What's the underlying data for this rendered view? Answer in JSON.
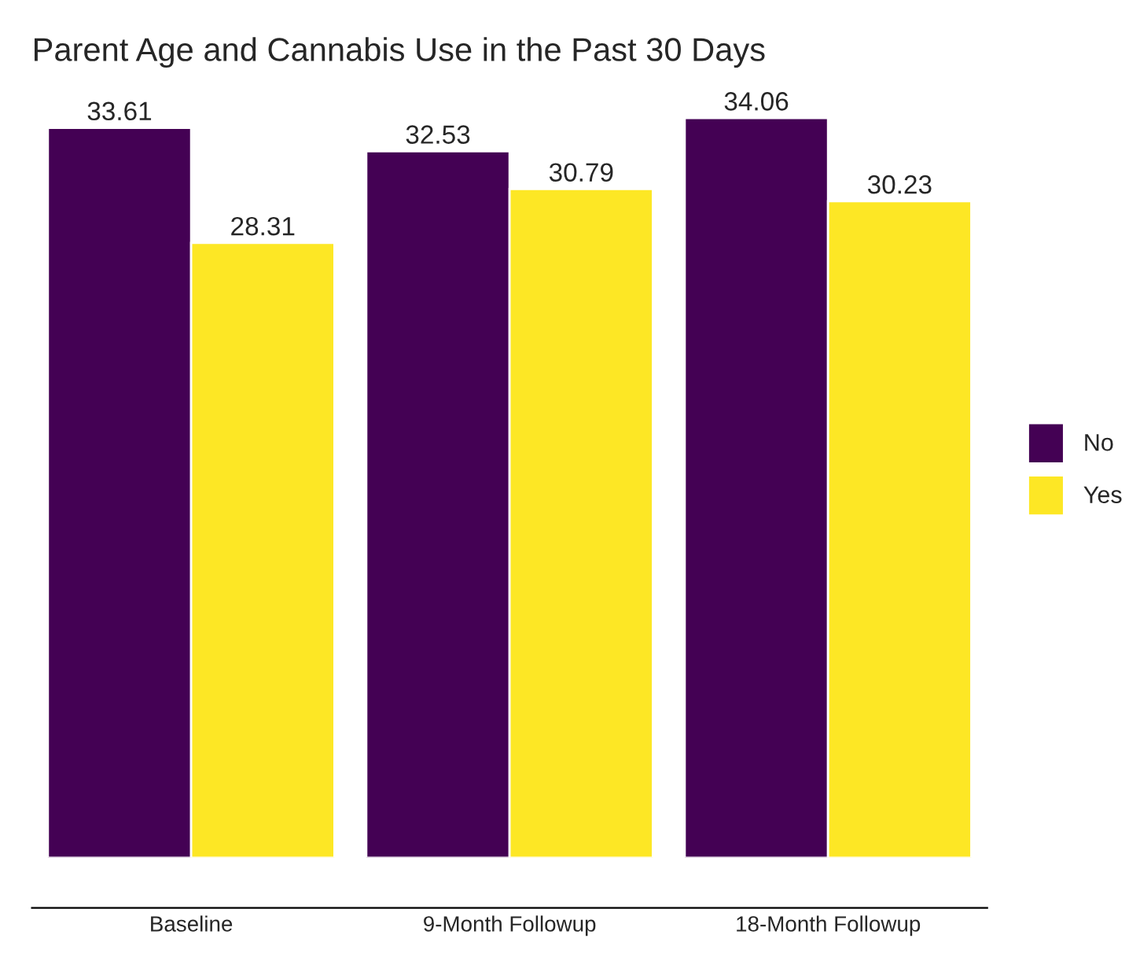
{
  "chart_data": {
    "type": "bar",
    "title": "Parent Age and Cannabis Use in the Past 30 Days",
    "categories": [
      "Baseline",
      "9-Month Followup",
      "18-Month Followup"
    ],
    "series": [
      {
        "name": "No",
        "color": "#440154",
        "values": [
          33.61,
          32.53,
          34.06
        ]
      },
      {
        "name": "Yes",
        "color": "#fde725",
        "values": [
          28.31,
          30.79,
          30.23
        ]
      }
    ],
    "data_labels": true,
    "legend": "right",
    "grid": false,
    "tick_labels": "x"
  }
}
